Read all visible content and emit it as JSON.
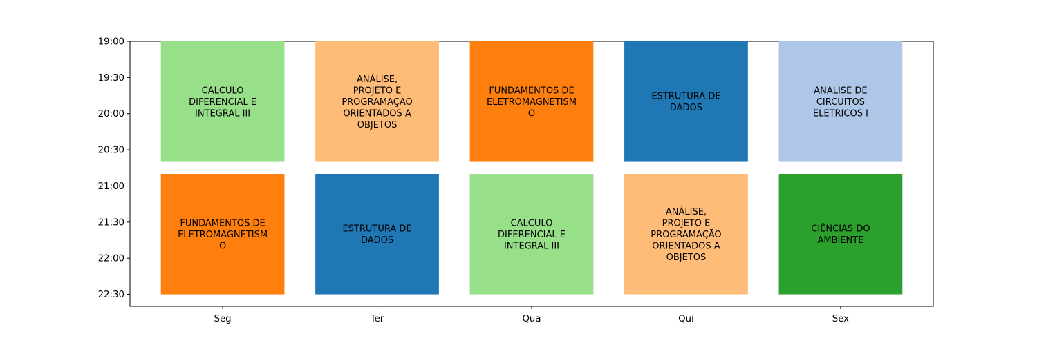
{
  "chart_data": {
    "type": "bar",
    "title": "",
    "xlabel": "",
    "ylabel": "",
    "categories": [
      "Seg",
      "Ter",
      "Qua",
      "Qui",
      "Sex"
    ],
    "y_ticks": [
      "19:00",
      "19:30",
      "20:00",
      "20:30",
      "21:00",
      "21:30",
      "22:00",
      "22:30"
    ],
    "ylim": [
      "22:40",
      "19:00"
    ],
    "y_inverted": true,
    "grid": false,
    "slots": [
      {
        "start": "19:00",
        "end": "20:40"
      },
      {
        "start": "20:50",
        "end": "22:30"
      }
    ],
    "blocks": [
      {
        "day": "Seg",
        "slot": 0,
        "label": [
          "CALCULO",
          "DIFERENCIAL E",
          "INTEGRAL III"
        ],
        "color": "#98df8a"
      },
      {
        "day": "Ter",
        "slot": 0,
        "label": [
          "ANÁLISE,",
          "PROJETO E",
          "PROGRAMAÇÃO",
          "ORIENTADOS A",
          "OBJETOS"
        ],
        "color": "#ffbb78"
      },
      {
        "day": "Qua",
        "slot": 0,
        "label": [
          "FUNDAMENTOS DE",
          "ELETROMAGNETISM",
          "O"
        ],
        "color": "#ff7f0e"
      },
      {
        "day": "Qui",
        "slot": 0,
        "label": [
          "ESTRUTURA DE",
          "DADOS"
        ],
        "color": "#1f77b4"
      },
      {
        "day": "Sex",
        "slot": 0,
        "label": [
          "ANALISE DE",
          "CIRCUITOS",
          "ELETRICOS I"
        ],
        "color": "#aec7e8"
      },
      {
        "day": "Seg",
        "slot": 1,
        "label": [
          "FUNDAMENTOS DE",
          "ELETROMAGNETISM",
          "O"
        ],
        "color": "#ff7f0e"
      },
      {
        "day": "Ter",
        "slot": 1,
        "label": [
          "ESTRUTURA DE",
          "DADOS"
        ],
        "color": "#1f77b4"
      },
      {
        "day": "Qua",
        "slot": 1,
        "label": [
          "CALCULO",
          "DIFERENCIAL E",
          "INTEGRAL III"
        ],
        "color": "#98df8a"
      },
      {
        "day": "Qui",
        "slot": 1,
        "label": [
          "ANÁLISE,",
          "PROJETO E",
          "PROGRAMAÇÃO",
          "ORIENTADOS A",
          "OBJETOS"
        ],
        "color": "#ffbb78"
      },
      {
        "day": "Sex",
        "slot": 1,
        "label": [
          "CIÊNCIAS DO",
          "AMBIENTE"
        ],
        "color": "#2ca02c"
      }
    ]
  }
}
